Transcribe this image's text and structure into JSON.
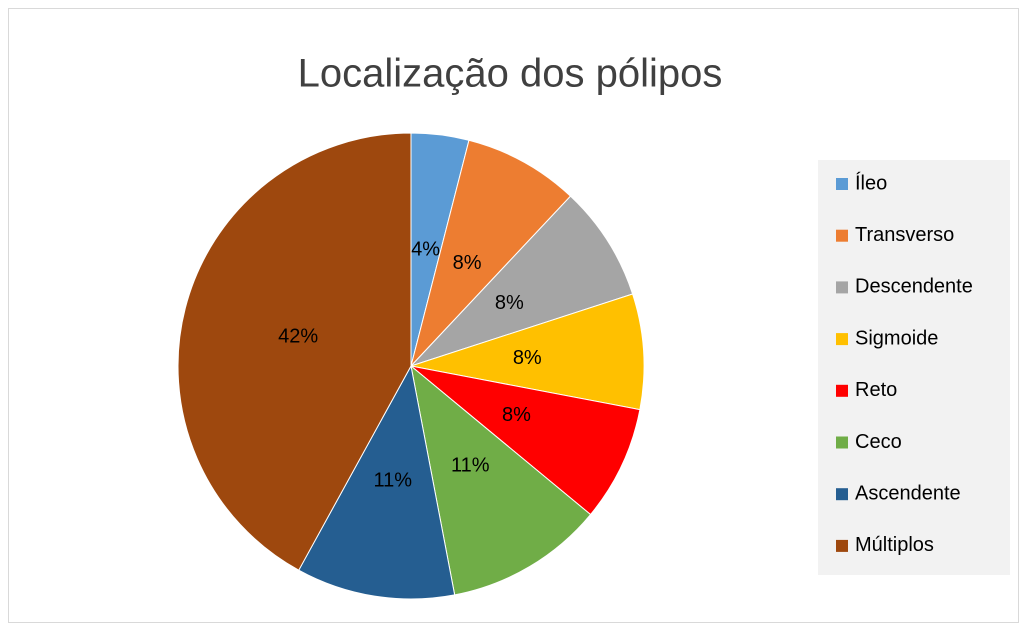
{
  "chart_data": {
    "type": "pie",
    "title": "Localização dos pólipos",
    "categories": [
      "Íleo",
      "Transverso",
      "Descendente",
      "Sigmoide",
      "Reto",
      "Ceco",
      "Ascendente",
      "Múltiplos"
    ],
    "values": [
      4,
      8,
      8,
      8,
      8,
      11,
      11,
      42
    ],
    "value_labels": [
      "4%",
      "8%",
      "8%",
      "8%",
      "8%",
      "11%",
      "11%",
      "42%"
    ],
    "colors": [
      "#5b9bd5",
      "#ed7d31",
      "#a5a5a5",
      "#ffc000",
      "#ff0000",
      "#70ad47",
      "#255e91",
      "#9e480e"
    ],
    "legend": "right"
  }
}
